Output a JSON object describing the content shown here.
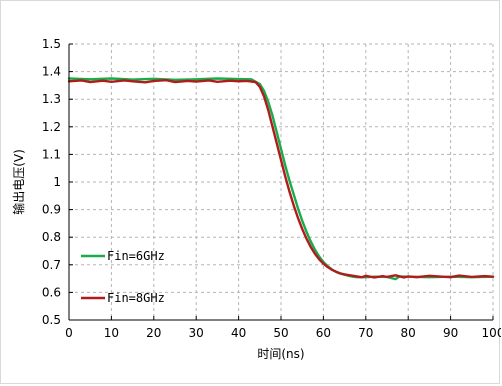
{
  "chart_data": {
    "type": "line",
    "title": "",
    "xlabel": "时间(ns)",
    "ylabel": "输出电压(V)",
    "xlim": [
      0,
      100
    ],
    "ylim": [
      0.5,
      1.5
    ],
    "x_ticks": [
      0,
      10,
      20,
      30,
      40,
      50,
      60,
      70,
      80,
      90,
      100
    ],
    "y_ticks": [
      0.5,
      0.6,
      0.7,
      0.8,
      0.9,
      1,
      1.1,
      1.2,
      1.3,
      1.4,
      1.5
    ],
    "y_tick_labels": [
      "0.5",
      "0.6",
      "0.7",
      "0.8",
      "0.9",
      "1",
      "1.1",
      "1.2",
      "1.3",
      "1.4",
      "1.5"
    ],
    "grid": true,
    "legend_position": "bottom-left",
    "series": [
      {
        "name": "Fin=6GHz",
        "color": "#1aab4b",
        "x": [
          0,
          5,
          10,
          15,
          20,
          25,
          30,
          35,
          40,
          43,
          45,
          46,
          47,
          48,
          49,
          50,
          51,
          52,
          53,
          54,
          55,
          56,
          57,
          58,
          59,
          60,
          61,
          62,
          63,
          64,
          65,
          66,
          67,
          68,
          70,
          72,
          75,
          77,
          78,
          80,
          85,
          90,
          95,
          100
        ],
        "y": [
          1.375,
          1.372,
          1.375,
          1.371,
          1.374,
          1.37,
          1.372,
          1.375,
          1.373,
          1.372,
          1.355,
          1.33,
          1.29,
          1.24,
          1.18,
          1.12,
          1.06,
          1.005,
          0.955,
          0.905,
          0.86,
          0.82,
          0.785,
          0.755,
          0.73,
          0.71,
          0.695,
          0.683,
          0.674,
          0.668,
          0.664,
          0.66,
          0.657,
          0.655,
          0.655,
          0.657,
          0.656,
          0.648,
          0.658,
          0.657,
          0.655,
          0.657,
          0.655,
          0.657
        ]
      },
      {
        "name": "Fin=8GHz",
        "color": "#b01c1c",
        "x": [
          0,
          3,
          5,
          8,
          10,
          13,
          15,
          18,
          20,
          23,
          25,
          28,
          30,
          33,
          35,
          38,
          40,
          42,
          44,
          45,
          46,
          47,
          48,
          49,
          50,
          51,
          52,
          53,
          54,
          55,
          56,
          57,
          58,
          59,
          60,
          61,
          62,
          63,
          64,
          65,
          67,
          69,
          70,
          72,
          74,
          75,
          77,
          79,
          80,
          82,
          85,
          88,
          90,
          92,
          95,
          98,
          100
        ],
        "y": [
          1.365,
          1.368,
          1.362,
          1.367,
          1.363,
          1.368,
          1.365,
          1.361,
          1.366,
          1.369,
          1.362,
          1.366,
          1.364,
          1.368,
          1.363,
          1.367,
          1.365,
          1.366,
          1.362,
          1.345,
          1.31,
          1.26,
          1.2,
          1.14,
          1.08,
          1.02,
          0.965,
          0.915,
          0.87,
          0.83,
          0.795,
          0.765,
          0.74,
          0.72,
          0.704,
          0.692,
          0.682,
          0.675,
          0.669,
          0.665,
          0.66,
          0.655,
          0.66,
          0.654,
          0.659,
          0.656,
          0.662,
          0.654,
          0.658,
          0.655,
          0.66,
          0.657,
          0.655,
          0.661,
          0.656,
          0.659,
          0.657
        ]
      }
    ]
  }
}
